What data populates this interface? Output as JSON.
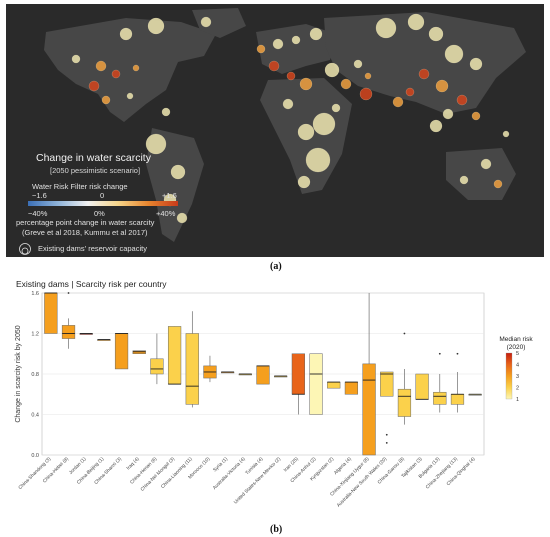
{
  "figure": {
    "panel_a": {
      "caption": "(a)",
      "legend": {
        "title": "Change in water scarcity",
        "subtitle": "[2050 pessimistic scenario]",
        "risk_label": "Water Risk Filter risk change",
        "risk_ticks": [
          "−1.6",
          "0",
          "+1.6"
        ],
        "pct_ticks": [
          "−40%",
          "0%",
          "+40%"
        ],
        "pct_label": "percentage point change in water scarcity",
        "citation": "(Greve et al 2018, Kummu et al 2017)",
        "dam_label": "Existing dams' reservoir capacity"
      },
      "colors": {
        "map_bg": "#2a2a2a",
        "land": "#4a4a4a",
        "bubble_low": "#efe6b0",
        "bubble_high": "#c73b1a"
      }
    },
    "panel_b": {
      "caption": "(b)",
      "header": "Existing dams  |  Scarcity risk per country",
      "median_risk_legend": {
        "title_line1": "Median risk",
        "title_line2": "(2020)",
        "ticks": [
          "5",
          "4",
          "3",
          "2",
          "1"
        ]
      }
    }
  },
  "chart_data": {
    "type": "box",
    "ylabel": "Change in scarcity risk by 2050",
    "ylim": [
      0,
      1.6
    ],
    "yticks": [
      "0.0",
      "0.4",
      "0.8",
      "1.2",
      "1.6"
    ],
    "color_scale": {
      "title": "Median risk (2020)",
      "min": 1,
      "max": 5,
      "colors": [
        "#fdf6b5",
        "#fbd14b",
        "#f59f1e",
        "#e8641a",
        "#c41e0f"
      ]
    },
    "categories": [
      {
        "label": "China-Shandong (3)",
        "min": 1.2,
        "q1": 1.2,
        "median": 1.6,
        "q3": 1.6,
        "max": 1.6,
        "risk": 3.2,
        "outliers": []
      },
      {
        "label": "China-Hebei (8)",
        "min": 1.05,
        "q1": 1.15,
        "median": 1.2,
        "q3": 1.28,
        "max": 1.35,
        "risk": 3.0,
        "outliers": [
          1.6
        ]
      },
      {
        "label": "Jordan (1)",
        "min": 1.2,
        "q1": 1.2,
        "median": 1.2,
        "q3": 1.2,
        "max": 1.2,
        "risk": 4.5,
        "outliers": []
      },
      {
        "label": "China-Beijing (1)",
        "min": 1.14,
        "q1": 1.14,
        "median": 1.14,
        "q3": 1.14,
        "max": 1.14,
        "risk": 2.5,
        "outliers": []
      },
      {
        "label": "China-Shanxi (3)",
        "min": 0.85,
        "q1": 0.85,
        "median": 1.2,
        "q3": 1.2,
        "max": 1.2,
        "risk": 3.0,
        "outliers": []
      },
      {
        "label": "Iraq (4)",
        "min": 1.0,
        "q1": 1.0,
        "median": 1.02,
        "q3": 1.03,
        "max": 1.03,
        "risk": 2.5,
        "outliers": []
      },
      {
        "label": "China-Henan (6)",
        "min": 0.7,
        "q1": 0.8,
        "median": 0.85,
        "q3": 0.95,
        "max": 1.2,
        "risk": 2.3,
        "outliers": []
      },
      {
        "label": "China-Nei Mongol (3)",
        "min": 0.7,
        "q1": 0.7,
        "median": 0.7,
        "q3": 1.27,
        "max": 1.27,
        "risk": 1.9,
        "outliers": []
      },
      {
        "label": "China-Liaoning (11)",
        "min": 0.47,
        "q1": 0.5,
        "median": 0.68,
        "q3": 1.2,
        "max": 1.42,
        "risk": 2.0,
        "outliers": []
      },
      {
        "label": "Morocco (10)",
        "min": 0.72,
        "q1": 0.76,
        "median": 0.82,
        "q3": 0.88,
        "max": 0.98,
        "risk": 3.0,
        "outliers": []
      },
      {
        "label": "Syria (1)",
        "min": 0.82,
        "q1": 0.82,
        "median": 0.82,
        "q3": 0.82,
        "max": 0.82,
        "risk": 3.0,
        "outliers": []
      },
      {
        "label": "Australia-Victoria (4)",
        "min": 0.8,
        "q1": 0.8,
        "median": 0.8,
        "q3": 0.8,
        "max": 0.8,
        "risk": 2.0,
        "outliers": []
      },
      {
        "label": "Tunisia (4)",
        "min": 0.7,
        "q1": 0.7,
        "median": 0.88,
        "q3": 0.88,
        "max": 0.88,
        "risk": 3.0,
        "outliers": []
      },
      {
        "label": "United States-New Mexico (2)",
        "min": 0.77,
        "q1": 0.77,
        "median": 0.78,
        "q3": 0.78,
        "max": 0.78,
        "risk": 2.0,
        "outliers": []
      },
      {
        "label": "Iran (25)",
        "min": 0.4,
        "q1": 0.6,
        "median": 0.6,
        "q3": 1.0,
        "max": 1.0,
        "risk": 3.8,
        "outliers": []
      },
      {
        "label": "China-Anhui (2)",
        "min": 0.4,
        "q1": 0.4,
        "median": 0.8,
        "q3": 1.0,
        "max": 1.0,
        "risk": 1.3,
        "outliers": []
      },
      {
        "label": "Kyrgyzstan (2)",
        "min": 0.66,
        "q1": 0.66,
        "median": 0.72,
        "q3": 0.72,
        "max": 0.72,
        "risk": 2.3,
        "outliers": []
      },
      {
        "label": "Algeria (4)",
        "min": 0.6,
        "q1": 0.6,
        "median": 0.72,
        "q3": 0.72,
        "max": 0.72,
        "risk": 3.0,
        "outliers": []
      },
      {
        "label": "China-Xinjiang Uygur (8)",
        "min": 0.0,
        "q1": 0.0,
        "median": 0.74,
        "q3": 0.9,
        "max": 1.6,
        "risk": 2.8,
        "outliers": []
      },
      {
        "label": "Australia-New South Wales (20)",
        "min": 0.58,
        "q1": 0.58,
        "median": 0.8,
        "q3": 0.82,
        "max": 0.82,
        "risk": 1.5,
        "outliers": [
          0.2,
          0.12
        ]
      },
      {
        "label": "China-Gansu (8)",
        "min": 0.3,
        "q1": 0.38,
        "median": 0.58,
        "q3": 0.65,
        "max": 0.85,
        "risk": 2.0,
        "outliers": [
          1.2
        ]
      },
      {
        "label": "Tajikistan (3)",
        "min": 0.55,
        "q1": 0.55,
        "median": 0.55,
        "q3": 0.8,
        "max": 0.8,
        "risk": 2.3,
        "outliers": []
      },
      {
        "label": "Bulgaria (13)",
        "min": 0.42,
        "q1": 0.5,
        "median": 0.58,
        "q3": 0.62,
        "max": 0.8,
        "risk": 2.0,
        "outliers": [
          1.0
        ]
      },
      {
        "label": "China-Zhejiang (13)",
        "min": 0.42,
        "q1": 0.5,
        "median": 0.6,
        "q3": 0.6,
        "max": 0.82,
        "risk": 1.5,
        "outliers": [
          1.0
        ]
      },
      {
        "label": "China-Qinghai (4)",
        "min": 0.6,
        "q1": 0.6,
        "median": 0.6,
        "q3": 0.6,
        "max": 0.6,
        "risk": 1.2,
        "outliers": []
      }
    ]
  }
}
